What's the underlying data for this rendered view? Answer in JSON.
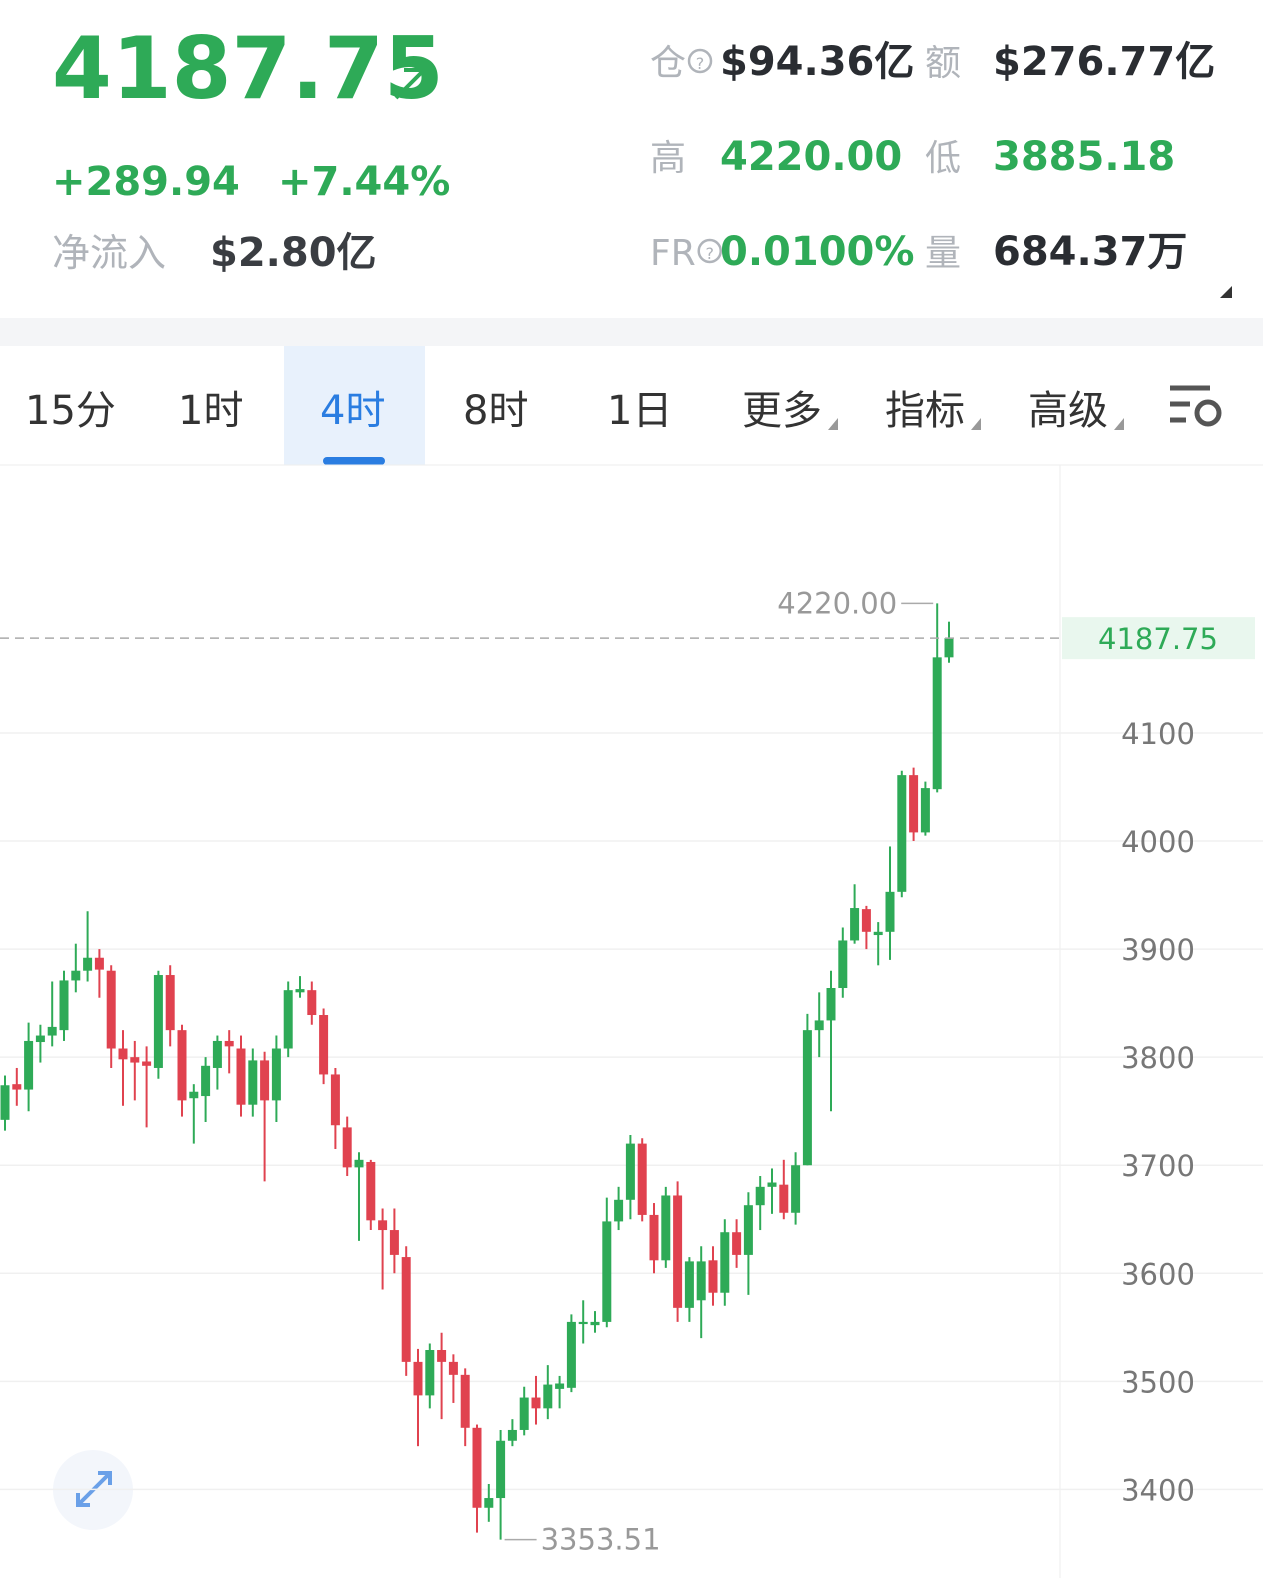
{
  "header": {
    "price": "4187.75",
    "change": "+289.94",
    "change_pct": "+7.44%",
    "net_inflow_label": "净流入",
    "net_inflow": "$2.80亿"
  },
  "stats": [
    {
      "label": "仓",
      "value": "$94.36亿",
      "help": true,
      "tone": "dark"
    },
    {
      "label": "额",
      "value": "$276.77亿",
      "tone": "dark"
    },
    {
      "label": "高",
      "value": "4220.00",
      "tone": "green"
    },
    {
      "label": "低",
      "value": "3885.18",
      "tone": "green"
    },
    {
      "label": "FR",
      "value": "0.0100%",
      "help": true,
      "tone": "green"
    },
    {
      "label": "量",
      "value": "684.37万",
      "tone": "dark"
    }
  ],
  "tabs": [
    {
      "label": "15分"
    },
    {
      "label": "1时"
    },
    {
      "label": "4时",
      "active": true
    },
    {
      "label": "8时"
    },
    {
      "label": "1日"
    },
    {
      "label": "更多",
      "dropdown": true
    },
    {
      "label": "指标",
      "dropdown": true
    },
    {
      "label": "高级",
      "dropdown": true
    }
  ],
  "chart_data": {
    "type": "candlestick",
    "up_color": "#2eaa57",
    "down_color": "#e0424f",
    "open": [
      3742,
      3775,
      3770,
      3814,
      3820,
      3825,
      3871,
      3880,
      3892,
      3880,
      3808,
      3800,
      3796,
      3790,
      3876,
      3825,
      3762,
      3764,
      3790,
      3815,
      3808,
      3756,
      3797,
      3760,
      3808,
      3860,
      3862,
      3839,
      3784,
      3735,
      3698,
      3703,
      3649,
      3640,
      3615,
      3518,
      3487,
      3529,
      3518,
      3506,
      3457,
      3383,
      3392,
      3445,
      3455,
      3485,
      3475,
      3493,
      3494,
      3553,
      3552,
      3555,
      3648,
      3668,
      3720,
      3654,
      3612,
      3672,
      3568,
      3575,
      3612,
      3582,
      3638,
      3617,
      3663,
      3680,
      3682,
      3656,
      3700,
      3825,
      3834,
      3864,
      3908,
      3937,
      3913,
      3916,
      3953,
      4061,
      4008,
      4048,
      4170
    ],
    "high": [
      3783,
      3790,
      3832,
      3830,
      3870,
      3880,
      3905,
      3935,
      3900,
      3885,
      3825,
      3815,
      3810,
      3880,
      3885,
      3830,
      3775,
      3800,
      3820,
      3825,
      3820,
      3808,
      3805,
      3820,
      3870,
      3875,
      3870,
      3845,
      3790,
      3745,
      3712,
      3705,
      3660,
      3660,
      3625,
      3530,
      3535,
      3545,
      3525,
      3512,
      3460,
      3405,
      3455,
      3465,
      3495,
      3505,
      3515,
      3505,
      3562,
      3575,
      3565,
      3670,
      3680,
      3728,
      3725,
      3665,
      3680,
      3685,
      3615,
      3625,
      3625,
      3650,
      3650,
      3675,
      3690,
      3697,
      3705,
      3712,
      3840,
      3860,
      3880,
      3920,
      3960,
      3940,
      3925,
      3995,
      4065,
      4068,
      4055,
      4220,
      4203
    ],
    "low": [
      3732,
      3755,
      3750,
      3795,
      3810,
      3815,
      3860,
      3870,
      3855,
      3790,
      3755,
      3760,
      3735,
      3780,
      3810,
      3745,
      3720,
      3740,
      3770,
      3785,
      3745,
      3745,
      3685,
      3740,
      3800,
      3855,
      3830,
      3775,
      3715,
      3690,
      3630,
      3640,
      3585,
      3600,
      3505,
      3440,
      3475,
      3465,
      3480,
      3440,
      3360,
      3370,
      3353.51,
      3440,
      3450,
      3460,
      3465,
      3475,
      3490,
      3535,
      3545,
      3550,
      3640,
      3650,
      3648,
      3600,
      3605,
      3555,
      3555,
      3540,
      3570,
      3570,
      3605,
      3580,
      3640,
      3655,
      3650,
      3645,
      3700,
      3800,
      3750,
      3855,
      3905,
      3900,
      3885,
      3890,
      3948,
      4000,
      4005,
      4045,
      4165
    ],
    "close": [
      3774,
      3770,
      3815,
      3820,
      3828,
      3871,
      3880,
      3892,
      3881,
      3808,
      3798,
      3795,
      3792,
      3876,
      3825,
      3760,
      3768,
      3792,
      3815,
      3810,
      3756,
      3797,
      3760,
      3808,
      3862,
      3863,
      3839,
      3784,
      3737,
      3698,
      3705,
      3649,
      3640,
      3617,
      3518,
      3487,
      3529,
      3518,
      3506,
      3457,
      3383,
      3392,
      3445,
      3455,
      3485,
      3475,
      3497,
      3498,
      3555,
      3555,
      3555,
      3648,
      3668,
      3720,
      3654,
      3612,
      3672,
      3568,
      3611,
      3611,
      3582,
      3638,
      3617,
      3663,
      3680,
      3684,
      3656,
      3700,
      3825,
      3834,
      3864,
      3908,
      3938,
      3916,
      3916,
      3953,
      4061,
      4008,
      4049,
      4170,
      4187.75
    ],
    "ylim": [
      3318,
      4348
    ],
    "yticks": [
      3400,
      3500,
      3600,
      3700,
      3800,
      3900,
      4000,
      4100
    ],
    "grid": true,
    "max_label": "4220.00",
    "min_label": "3353.51",
    "last_label": "4187.75"
  }
}
